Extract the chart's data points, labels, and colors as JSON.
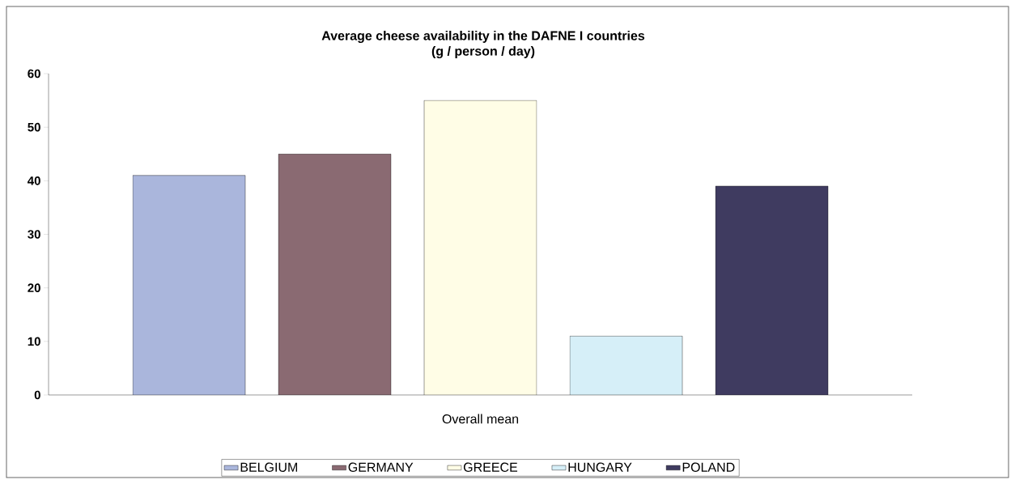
{
  "chart_data": {
    "type": "bar",
    "title": "Average cheese availability in the DAFNE I countries",
    "subtitle": "(g / person / day)",
    "categories": [
      "Overall mean"
    ],
    "series": [
      {
        "name": "BELGIUM",
        "color": "#aab6dc",
        "values": [
          41
        ]
      },
      {
        "name": "GERMANY",
        "color": "#8a6a72",
        "values": [
          45
        ]
      },
      {
        "name": "GREECE",
        "color": "#fffde6",
        "values": [
          55
        ]
      },
      {
        "name": "HUNGARY",
        "color": "#d6eff8",
        "values": [
          11
        ]
      },
      {
        "name": "POLAND",
        "color": "#3f3b60",
        "values": [
          39
        ]
      }
    ],
    "ylim": [
      0,
      60
    ],
    "yticks": [
      0,
      10,
      20,
      30,
      40,
      50,
      60
    ],
    "grid": false,
    "legend": "bottom"
  }
}
